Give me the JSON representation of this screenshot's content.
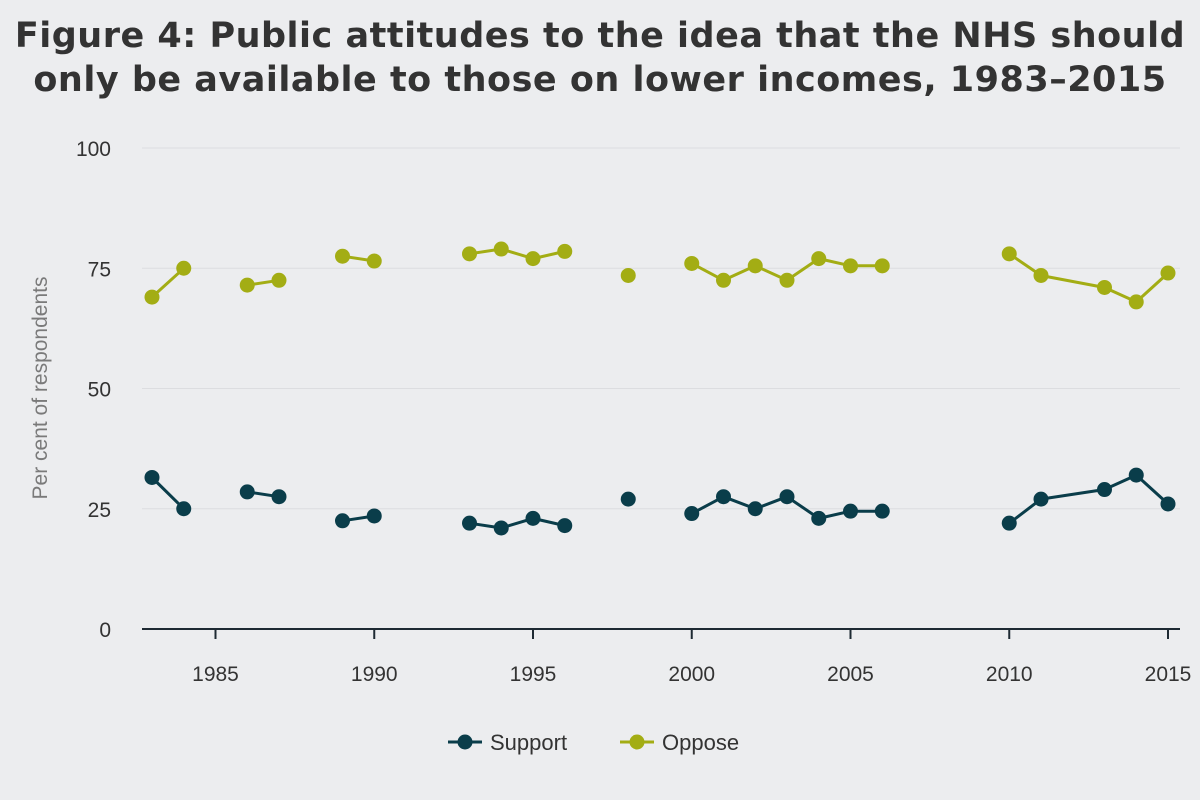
{
  "colors": {
    "background": "#ecedef",
    "grid": "#dcdde0",
    "axis": "#1e2a33",
    "support": "#0a3d4a",
    "oppose": "#a3ad14"
  },
  "chart_data": {
    "type": "line",
    "title": "Figure 4: Public attitudes to the idea that the NHS should only be available to those on lower incomes, 1983–2015",
    "title_lines": [
      "Figure 4: Public attitudes to the idea that the NHS should",
      "only be available to those on lower incomes, 1983–2015"
    ],
    "xlabel": "",
    "ylabel": "Per cent of respondents",
    "xlim": [
      1983,
      2015
    ],
    "ylim": [
      0,
      100
    ],
    "x_ticks": [
      1985,
      1990,
      1995,
      2000,
      2005,
      2010,
      2015
    ],
    "y_ticks": [
      0,
      25,
      50,
      75,
      100
    ],
    "grid": true,
    "legend_position": "bottom-center",
    "series": [
      {
        "name": "Support",
        "color": "#0a3d4a",
        "points": [
          [
            1983,
            31.5
          ],
          [
            1984,
            25
          ],
          [
            1985,
            null
          ],
          [
            1986,
            28.5
          ],
          [
            1987,
            27.5
          ],
          [
            1988,
            null
          ],
          [
            1989,
            22.5
          ],
          [
            1990,
            23.5
          ],
          [
            1991,
            null
          ],
          [
            1992,
            null
          ],
          [
            1993,
            22
          ],
          [
            1994,
            21
          ],
          [
            1995,
            23
          ],
          [
            1996,
            21.5
          ],
          [
            1997,
            null
          ],
          [
            1998,
            27
          ],
          [
            1999,
            null
          ],
          [
            2000,
            24
          ],
          [
            2001,
            27.5
          ],
          [
            2002,
            25
          ],
          [
            2003,
            27.5
          ],
          [
            2004,
            23
          ],
          [
            2005,
            24.5
          ],
          [
            2006,
            24.5
          ],
          [
            2007,
            null
          ],
          [
            2008,
            null
          ],
          [
            2009,
            null
          ],
          [
            2010,
            22
          ],
          [
            2011,
            27
          ],
          [
            2013,
            29
          ],
          [
            2014,
            32
          ],
          [
            2015,
            26
          ]
        ]
      },
      {
        "name": "Oppose",
        "color": "#a3ad14",
        "points": [
          [
            1983,
            69
          ],
          [
            1984,
            75
          ],
          [
            1985,
            null
          ],
          [
            1986,
            71.5
          ],
          [
            1987,
            72.5
          ],
          [
            1988,
            null
          ],
          [
            1989,
            77.5
          ],
          [
            1990,
            76.5
          ],
          [
            1991,
            null
          ],
          [
            1992,
            null
          ],
          [
            1993,
            78
          ],
          [
            1994,
            79
          ],
          [
            1995,
            77
          ],
          [
            1996,
            78.5
          ],
          [
            1997,
            null
          ],
          [
            1998,
            73.5
          ],
          [
            1999,
            null
          ],
          [
            2000,
            76
          ],
          [
            2001,
            72.5
          ],
          [
            2002,
            75.5
          ],
          [
            2003,
            72.5
          ],
          [
            2004,
            77
          ],
          [
            2005,
            75.5
          ],
          [
            2006,
            75.5
          ],
          [
            2007,
            null
          ],
          [
            2008,
            null
          ],
          [
            2009,
            null
          ],
          [
            2010,
            78
          ],
          [
            2011,
            73.5
          ],
          [
            2013,
            71
          ],
          [
            2014,
            68
          ],
          [
            2015,
            74
          ]
        ]
      }
    ]
  }
}
